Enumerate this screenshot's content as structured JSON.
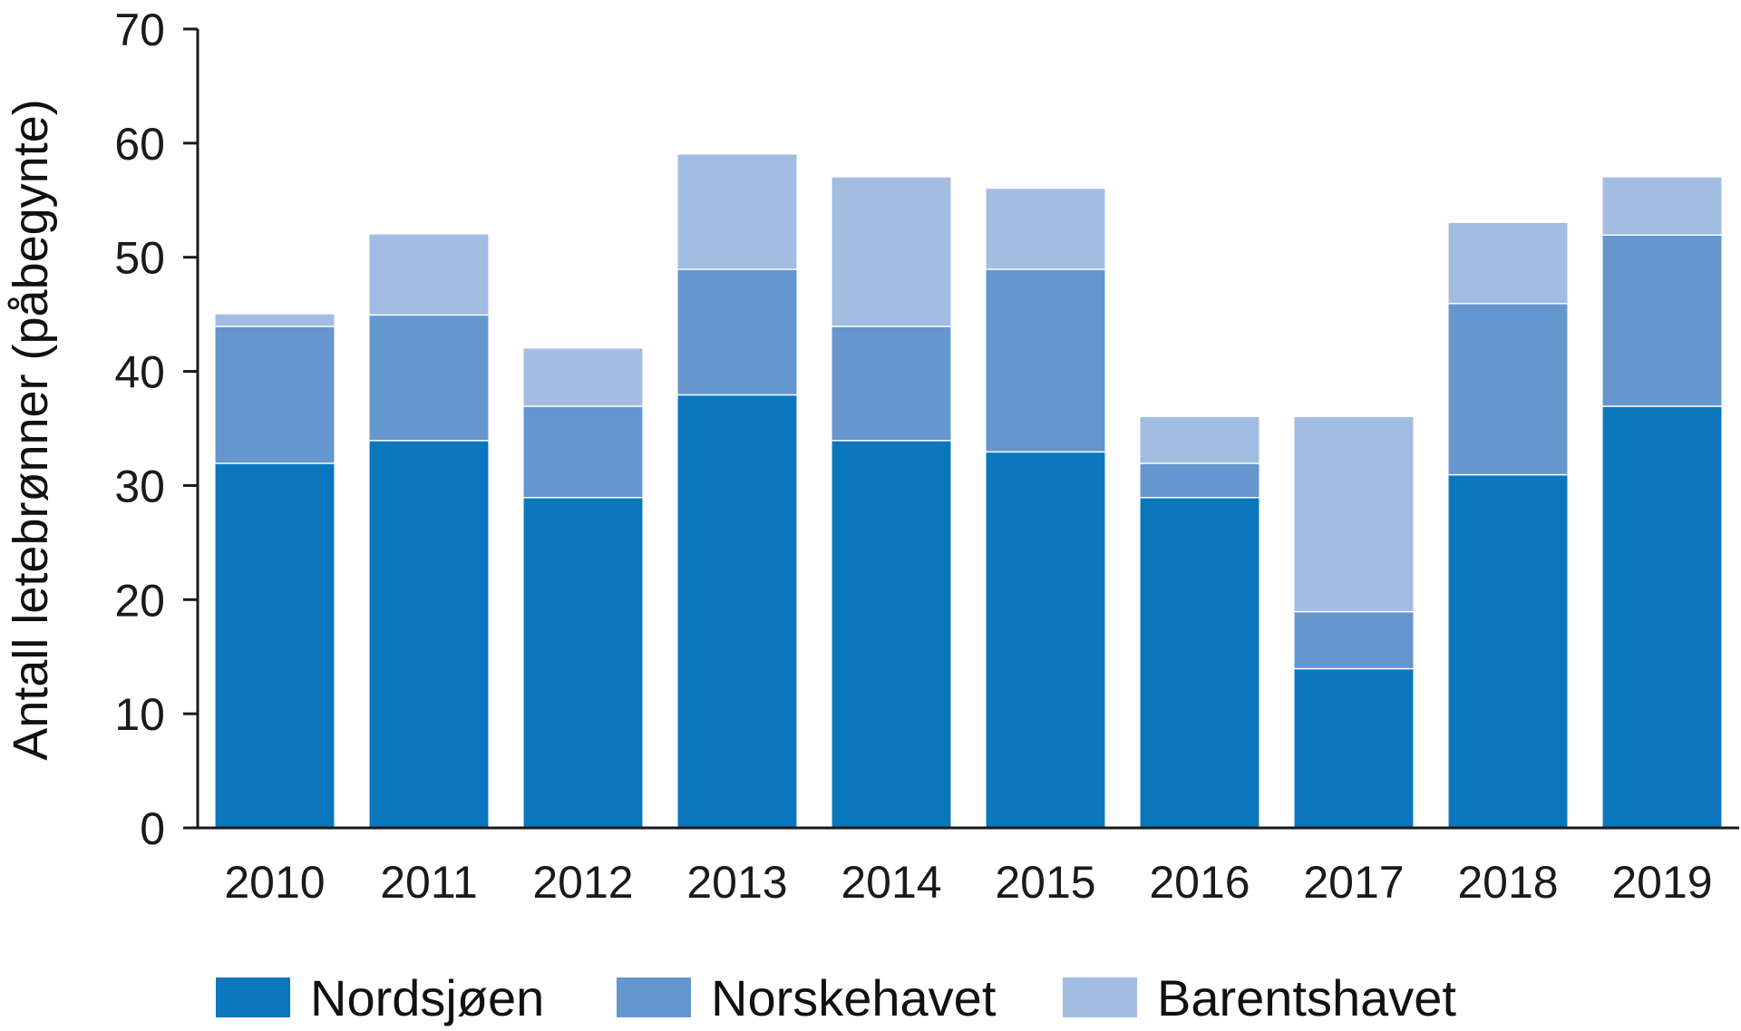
{
  "chart_data": {
    "type": "bar",
    "stacked": true,
    "title": "",
    "xlabel": "",
    "ylabel": "Antall letebrønner  (påbegynte)",
    "ylim": [
      0,
      70
    ],
    "yticks": [
      0,
      10,
      20,
      30,
      40,
      50,
      60,
      70
    ],
    "grid": false,
    "legend_position": "bottom",
    "categories": [
      "2010",
      "2011",
      "2012",
      "2013",
      "2014",
      "2015",
      "2016",
      "2017",
      "2018",
      "2019"
    ],
    "series": [
      {
        "name": "Nordsjøen",
        "color": "#0a77bd",
        "values": [
          32,
          34,
          29,
          38,
          34,
          33,
          29,
          14,
          31,
          37
        ]
      },
      {
        "name": "Norskehavet",
        "color": "#6596cd",
        "values": [
          12,
          11,
          8,
          11,
          10,
          16,
          3,
          5,
          15,
          15
        ]
      },
      {
        "name": "Barentshavet",
        "color": "#a3bce2",
        "values": [
          1,
          7,
          5,
          10,
          13,
          7,
          4,
          17,
          7,
          5
        ]
      }
    ]
  }
}
